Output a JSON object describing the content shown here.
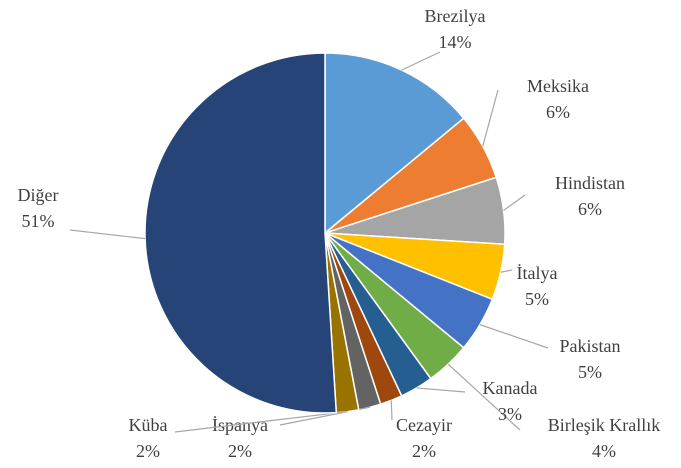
{
  "chart_data": {
    "type": "pie",
    "categories": [
      "Brezilya",
      "Meksika",
      "Hindistan",
      "İtalya",
      "Pakistan",
      "Birleşik Krallık",
      "Kanada",
      "Cezayir",
      "İspanya",
      "Küba",
      "Diğer"
    ],
    "values": [
      14,
      6,
      6,
      5,
      5,
      4,
      3,
      2,
      2,
      2,
      51
    ],
    "value_labels": [
      "14%",
      "6%",
      "6%",
      "5%",
      "5%",
      "4%",
      "3%",
      "2%",
      "2%",
      "2%",
      "51%"
    ],
    "colors": [
      "#5b9bd5",
      "#ed7d31",
      "#a5a5a5",
      "#ffc000",
      "#4472c4",
      "#70ad47",
      "#255e91",
      "#9e480e",
      "#636363",
      "#997300",
      "#264478"
    ]
  }
}
